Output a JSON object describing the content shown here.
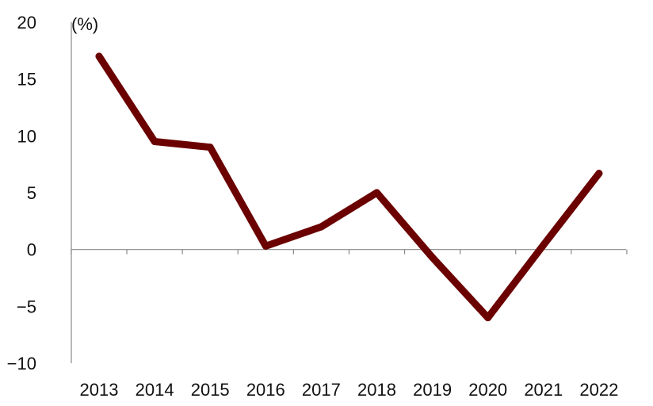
{
  "chart_data": {
    "type": "line",
    "ylabel": "(%)",
    "categories": [
      "2013",
      "2014",
      "2015",
      "2016",
      "2017",
      "2018",
      "2019",
      "2020",
      "2021",
      "2022"
    ],
    "series": [
      {
        "values": [
          17.0,
          9.5,
          9.0,
          0.3,
          2.0,
          5.0,
          -0.7,
          -6.0,
          0.4,
          6.7
        ]
      }
    ],
    "yticks": [
      "20",
      "15",
      "10",
      "5",
      "0",
      "−5",
      "−10"
    ],
    "ylim": [
      -10,
      20
    ],
    "grid": false,
    "legend": "none",
    "colors": {
      "line": "#6b0000",
      "axis": "#888888"
    }
  }
}
